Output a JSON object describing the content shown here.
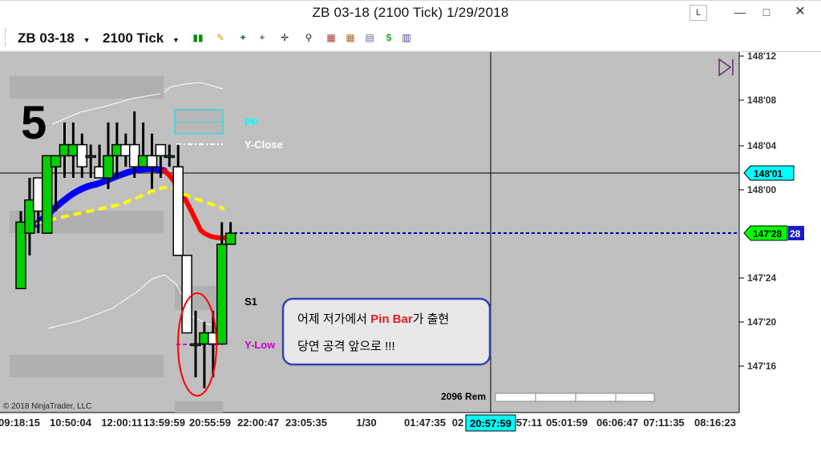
{
  "window": {
    "title": "ZB 03-18 (2100 Tick)  1/29/2018",
    "minimize_icon": "minimize-icon",
    "maximize_icon": "maximize-icon",
    "close_icon": "close-icon",
    "link_label": "L"
  },
  "toolbar": {
    "instrument": "ZB 03-18",
    "interval": "2100 Tick"
  },
  "chart": {
    "big_number": "5",
    "levels": {
      "pp": "PP",
      "yclose": "Y-Close",
      "s1": "S1",
      "ylow": "Y-Low"
    },
    "callout": {
      "line1_pre": "어제 저가에서 ",
      "line1_highlight": "Pin Bar",
      "line1_post": "가 출현",
      "line2": "당연 공격 앞으로 !!!"
    },
    "price_axis": [
      "148'12",
      "148'08",
      "148'04",
      "148'00",
      "147'24",
      "147'20",
      "147'16"
    ],
    "cursor_price": "148'01",
    "last_price": "147'28",
    "last_price_short": "28",
    "time_axis": [
      "09:18:15",
      "10:50:04",
      "12:00:11",
      "13:59:59",
      "20:55:59",
      "22:00:47",
      "23:05:35",
      "1/30",
      "01:47:35",
      "02",
      "57:11",
      "05:01:59",
      "06:06:47",
      "07:11:35",
      "08:16:23"
    ],
    "cursor_time": "20:57:59",
    "remaining": "2096 Rem",
    "copyright": "© 2018 NinjaTrader, LLC",
    "colors": {
      "background": "#c0c0c0",
      "bull": "#00d000",
      "bear": "#ffffff",
      "ema_up": "#0000ff",
      "ema_down": "#ff0000",
      "sma": "#ffff00",
      "pp": "#00ffff",
      "ylow": "#cc00cc",
      "last_price": "#00ff00",
      "cursor_price": "#00ffff",
      "callout_border": "#3044b0"
    }
  },
  "chart_data": {
    "type": "candlestick",
    "title": "ZB 03-18 (2100 Tick)",
    "price_unit": "32nds",
    "yrange": [
      "147'14",
      "148'13"
    ],
    "candles": [
      {
        "o": "147'23",
        "h": "147'30",
        "l": "147'23",
        "c": "147'29"
      },
      {
        "o": "147'28",
        "h": "148'01",
        "l": "147'26",
        "c": "147'31"
      },
      {
        "o": "148'01",
        "h": "148'00",
        "l": "147'28",
        "c": "147'30"
      },
      {
        "o": "147'28",
        "h": "148'02",
        "l": "147'28",
        "c": "148'03"
      },
      {
        "o": "148'02",
        "h": "148'03",
        "l": "147'30",
        "c": "148'03"
      },
      {
        "o": "148'03",
        "h": "148'06",
        "l": "148'01",
        "c": "148'04"
      },
      {
        "o": "148'03",
        "h": "148'06",
        "l": "148'01",
        "c": "148'04"
      },
      {
        "o": "148'04",
        "h": "148'05",
        "l": "148'01",
        "c": "148'02"
      },
      {
        "o": "148'03",
        "h": "148'04",
        "l": "148'01",
        "c": "148'03"
      },
      {
        "o": "148'02",
        "h": "148'04",
        "l": "148'01",
        "c": "148'01"
      },
      {
        "o": "148'01",
        "h": "148'06",
        "l": "148'00",
        "c": "148'03"
      },
      {
        "o": "148'03",
        "h": "148'06",
        "l": "148'01",
        "c": "148'04"
      },
      {
        "o": "148'04",
        "h": "148'05",
        "l": "148'02",
        "c": "148'03"
      },
      {
        "o": "148'04",
        "h": "148'07",
        "l": "148'01",
        "c": "148'02"
      },
      {
        "o": "148'02",
        "h": "148'06",
        "l": "148'03",
        "c": "148'03"
      },
      {
        "o": "148'03",
        "h": "148'05",
        "l": "148'00",
        "c": "148'02"
      },
      {
        "o": "148'04",
        "h": "148'04",
        "l": "148'01",
        "c": "148'03"
      },
      {
        "o": "148'03",
        "h": "148'04",
        "l": "148'02",
        "c": "148'03"
      },
      {
        "o": "148'02",
        "h": "148'04",
        "l": "147'26",
        "c": "147'26"
      },
      {
        "o": "147'26",
        "h": "147'26",
        "l": "147'19",
        "c": "147'19"
      },
      {
        "o": "147'18",
        "h": "147'21",
        "l": "147'15",
        "c": "147'18"
      },
      {
        "o": "147'18",
        "h": "147'20",
        "l": "147'14",
        "c": "147'19"
      },
      {
        "o": "147'19",
        "h": "147'21",
        "l": "147'15",
        "c": "147'18"
      },
      {
        "o": "147'18",
        "h": "147'29",
        "l": "147'18",
        "c": "147'27"
      },
      {
        "o": "147'27",
        "h": "147'29",
        "l": "147'27",
        "c": "147'28"
      }
    ]
  }
}
